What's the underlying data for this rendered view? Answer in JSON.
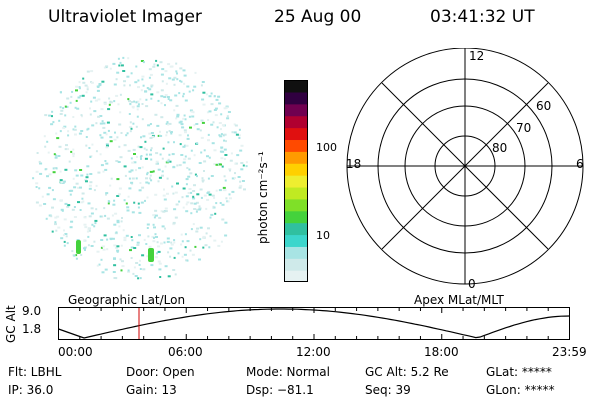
{
  "header": {
    "instrument": "Ultraviolet Imager",
    "date": "25 Aug 00",
    "time": "03:41:32 UT"
  },
  "colorbar": {
    "unit": "photon cm⁻²s⁻¹",
    "ticks": [
      "100",
      "10"
    ],
    "colors": [
      "#e6f2f2",
      "#cfeaea",
      "#a8e4e4",
      "#3cd6cc",
      "#30c0a0",
      "#44d23c",
      "#7fe028",
      "#c0ea22",
      "#eeee30",
      "#ffd000",
      "#ff9a00",
      "#ff4a00",
      "#e01010",
      "#b00030",
      "#700050",
      "#300040",
      "#101010"
    ]
  },
  "polar": {
    "mlt_labels": {
      "top": "12",
      "right": "6",
      "bottom": "0",
      "left": "18"
    },
    "lat_labels": [
      "60",
      "70",
      "80"
    ]
  },
  "coordinate_labels": {
    "geographic": "Geographic Lat/Lon",
    "apex": "Apex MLat/MLT"
  },
  "gc_panel": {
    "axis_label": "GC Alt",
    "y_ticks": [
      "9.0",
      "1.8"
    ],
    "x_ticks": [
      "00:00",
      "06:00",
      "12:00",
      "18:00",
      "23:59"
    ],
    "colors": {
      "curve": "#000000",
      "marker": "#d00000"
    }
  },
  "status": {
    "flt": "Flt: LBHL",
    "ip": "IP: 36.0",
    "door": "Door: Open",
    "gain": "Gain: 13",
    "mode": "Mode: Normal",
    "dsp": "Dsp:  −81.1",
    "gc_alt": "GC Alt: 5.2 Re",
    "seq": "Seq: 39",
    "glat": "GLat: *****",
    "glon": "GLon: *****"
  }
}
